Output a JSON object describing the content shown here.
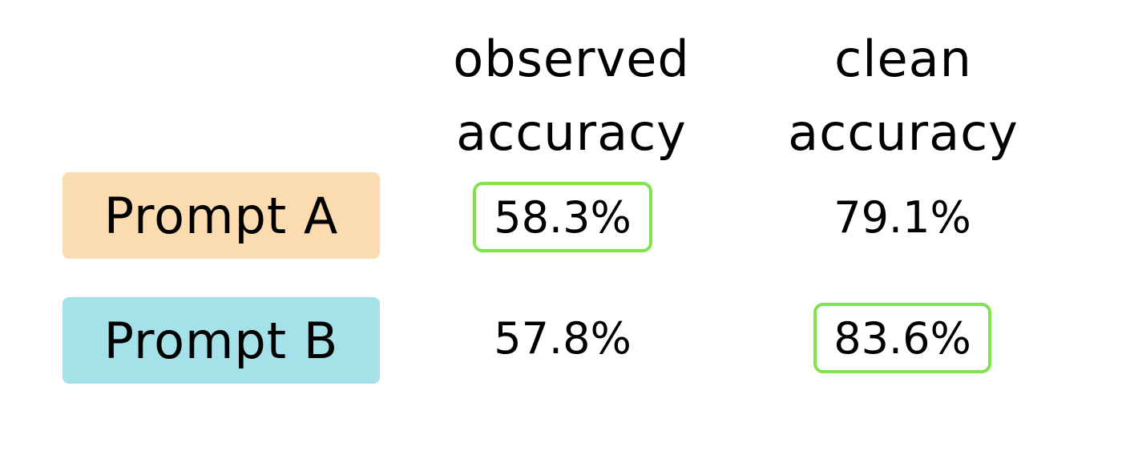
{
  "chart_data": {
    "type": "table",
    "columns": [
      "observed\naccuracy",
      "clean\naccuracy"
    ],
    "rows": [
      {
        "label": "Prompt A",
        "label_color": "#fadcb0",
        "values": [
          "58.3%",
          "79.1%"
        ],
        "highlight": [
          true,
          false
        ]
      },
      {
        "label": "Prompt B",
        "label_color": "#a5e1e8",
        "values": [
          "57.8%",
          "83.6%"
        ],
        "highlight": [
          false,
          true
        ]
      }
    ],
    "highlight_color": "#7fe34a"
  }
}
